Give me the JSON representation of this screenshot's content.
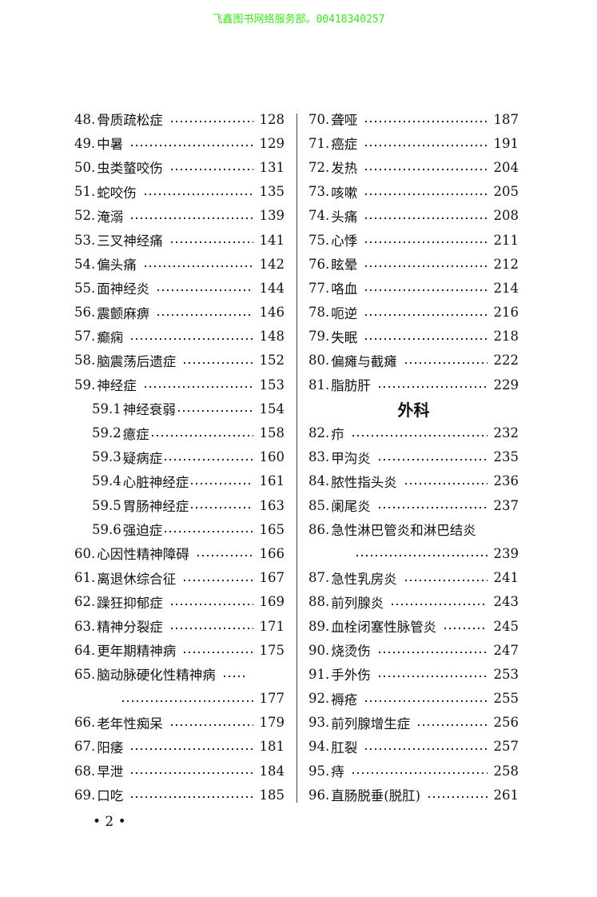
{
  "watermark": "飞鑫图书网络服务部。00418340257",
  "left_column": [
    {
      "no": "48.",
      "title": "骨质疏松症",
      "page": "128"
    },
    {
      "no": "49.",
      "title": "中暑",
      "page": "129"
    },
    {
      "no": "50.",
      "title": "虫类螫咬伤",
      "page": "131"
    },
    {
      "no": "51.",
      "title": "蛇咬伤",
      "page": "135"
    },
    {
      "no": "52.",
      "title": "淹溺",
      "page": "139"
    },
    {
      "no": "53.",
      "title": "三叉神经痛",
      "page": "141"
    },
    {
      "no": "54.",
      "title": "偏头痛",
      "page": "142"
    },
    {
      "no": "55.",
      "title": "面神经炎",
      "page": "144"
    },
    {
      "no": "56.",
      "title": "震颤麻痹",
      "page": "146"
    },
    {
      "no": "57.",
      "title": "癫痫",
      "page": "148"
    },
    {
      "no": "58.",
      "title": "脑震荡后遗症",
      "page": "152"
    },
    {
      "no": "59.",
      "title": "神经症",
      "page": "153"
    },
    {
      "no": "59.1 ",
      "title": "神经衰弱",
      "page": "154",
      "sub": true
    },
    {
      "no": "59.2 ",
      "title": "癔症",
      "page": "158",
      "sub": true
    },
    {
      "no": "59.3 ",
      "title": "疑病症",
      "page": "160",
      "sub": true
    },
    {
      "no": "59.4 ",
      "title": "心脏神经症",
      "page": "161",
      "sub": true
    },
    {
      "no": "59.5 ",
      "title": "胃肠神经症",
      "page": "163",
      "sub": true
    },
    {
      "no": "59.6 ",
      "title": "强迫症",
      "page": "165",
      "sub": true
    },
    {
      "no": "60.",
      "title": "心因性精神障碍",
      "page": "166"
    },
    {
      "no": "61.",
      "title": "离退休综合征",
      "page": "167"
    },
    {
      "no": "62.",
      "title": "躁狂抑郁症",
      "page": "169"
    },
    {
      "no": "63.",
      "title": "精神分裂症",
      "page": "171"
    },
    {
      "no": "64.",
      "title": "更年期精神病",
      "page": "175"
    },
    {
      "no": "65.",
      "title": "脑动脉硬化性精神病",
      "page": "177",
      "wrap": true
    },
    {
      "no": "66.",
      "title": "老年性痴呆",
      "page": "179"
    },
    {
      "no": "67.",
      "title": "阳痿",
      "page": "181"
    },
    {
      "no": "68.",
      "title": "早泄",
      "page": "184"
    },
    {
      "no": "69.",
      "title": "口吃",
      "page": "185"
    }
  ],
  "right_column": [
    {
      "no": "70.",
      "title": "聋哑",
      "page": "187"
    },
    {
      "no": "71.",
      "title": "癌症",
      "page": "191"
    },
    {
      "no": "72.",
      "title": "发热",
      "page": "204"
    },
    {
      "no": "73.",
      "title": "咳嗽",
      "page": "205"
    },
    {
      "no": "74.",
      "title": "头痛",
      "page": "208"
    },
    {
      "no": "75.",
      "title": "心悸",
      "page": "211"
    },
    {
      "no": "76.",
      "title": "眩晕",
      "page": "212"
    },
    {
      "no": "77.",
      "title": "咯血",
      "page": "214"
    },
    {
      "no": "78.",
      "title": "呃逆",
      "page": "216"
    },
    {
      "no": "79.",
      "title": "失眠",
      "page": "218"
    },
    {
      "no": "80.",
      "title": "偏瘫与截瘫",
      "page": "222"
    },
    {
      "no": "81.",
      "title": "脂肪肝",
      "page": "229"
    },
    {
      "heading": "外科"
    },
    {
      "no": "82.",
      "title": "疖",
      "page": "232"
    },
    {
      "no": "83.",
      "title": "甲沟炎",
      "page": "235"
    },
    {
      "no": "84.",
      "title": "脓性指头炎",
      "page": "236"
    },
    {
      "no": "85.",
      "title": "阑尾炎",
      "page": "237"
    },
    {
      "no": "86.",
      "title": "急性淋巴管炎和淋巴结炎",
      "page": "239",
      "wrap": true
    },
    {
      "no": "87.",
      "title": "急性乳房炎",
      "page": "241"
    },
    {
      "no": "88.",
      "title": "前列腺炎",
      "page": "243"
    },
    {
      "no": "89.",
      "title": "血栓闭塞性脉管炎",
      "page": "245"
    },
    {
      "no": "90.",
      "title": "烧烫伤",
      "page": "247"
    },
    {
      "no": "91.",
      "title": "手外伤",
      "page": "253"
    },
    {
      "no": "92.",
      "title": "褥疮",
      "page": "255"
    },
    {
      "no": "93.",
      "title": "前列腺增生症",
      "page": "256"
    },
    {
      "no": "94.",
      "title": "肛裂",
      "page": "257"
    },
    {
      "no": "95.",
      "title": "痔",
      "page": "258"
    },
    {
      "no": "96.",
      "title": "直肠脱垂(脱肛)",
      "page": "261"
    }
  ],
  "folio": "• 2 •"
}
